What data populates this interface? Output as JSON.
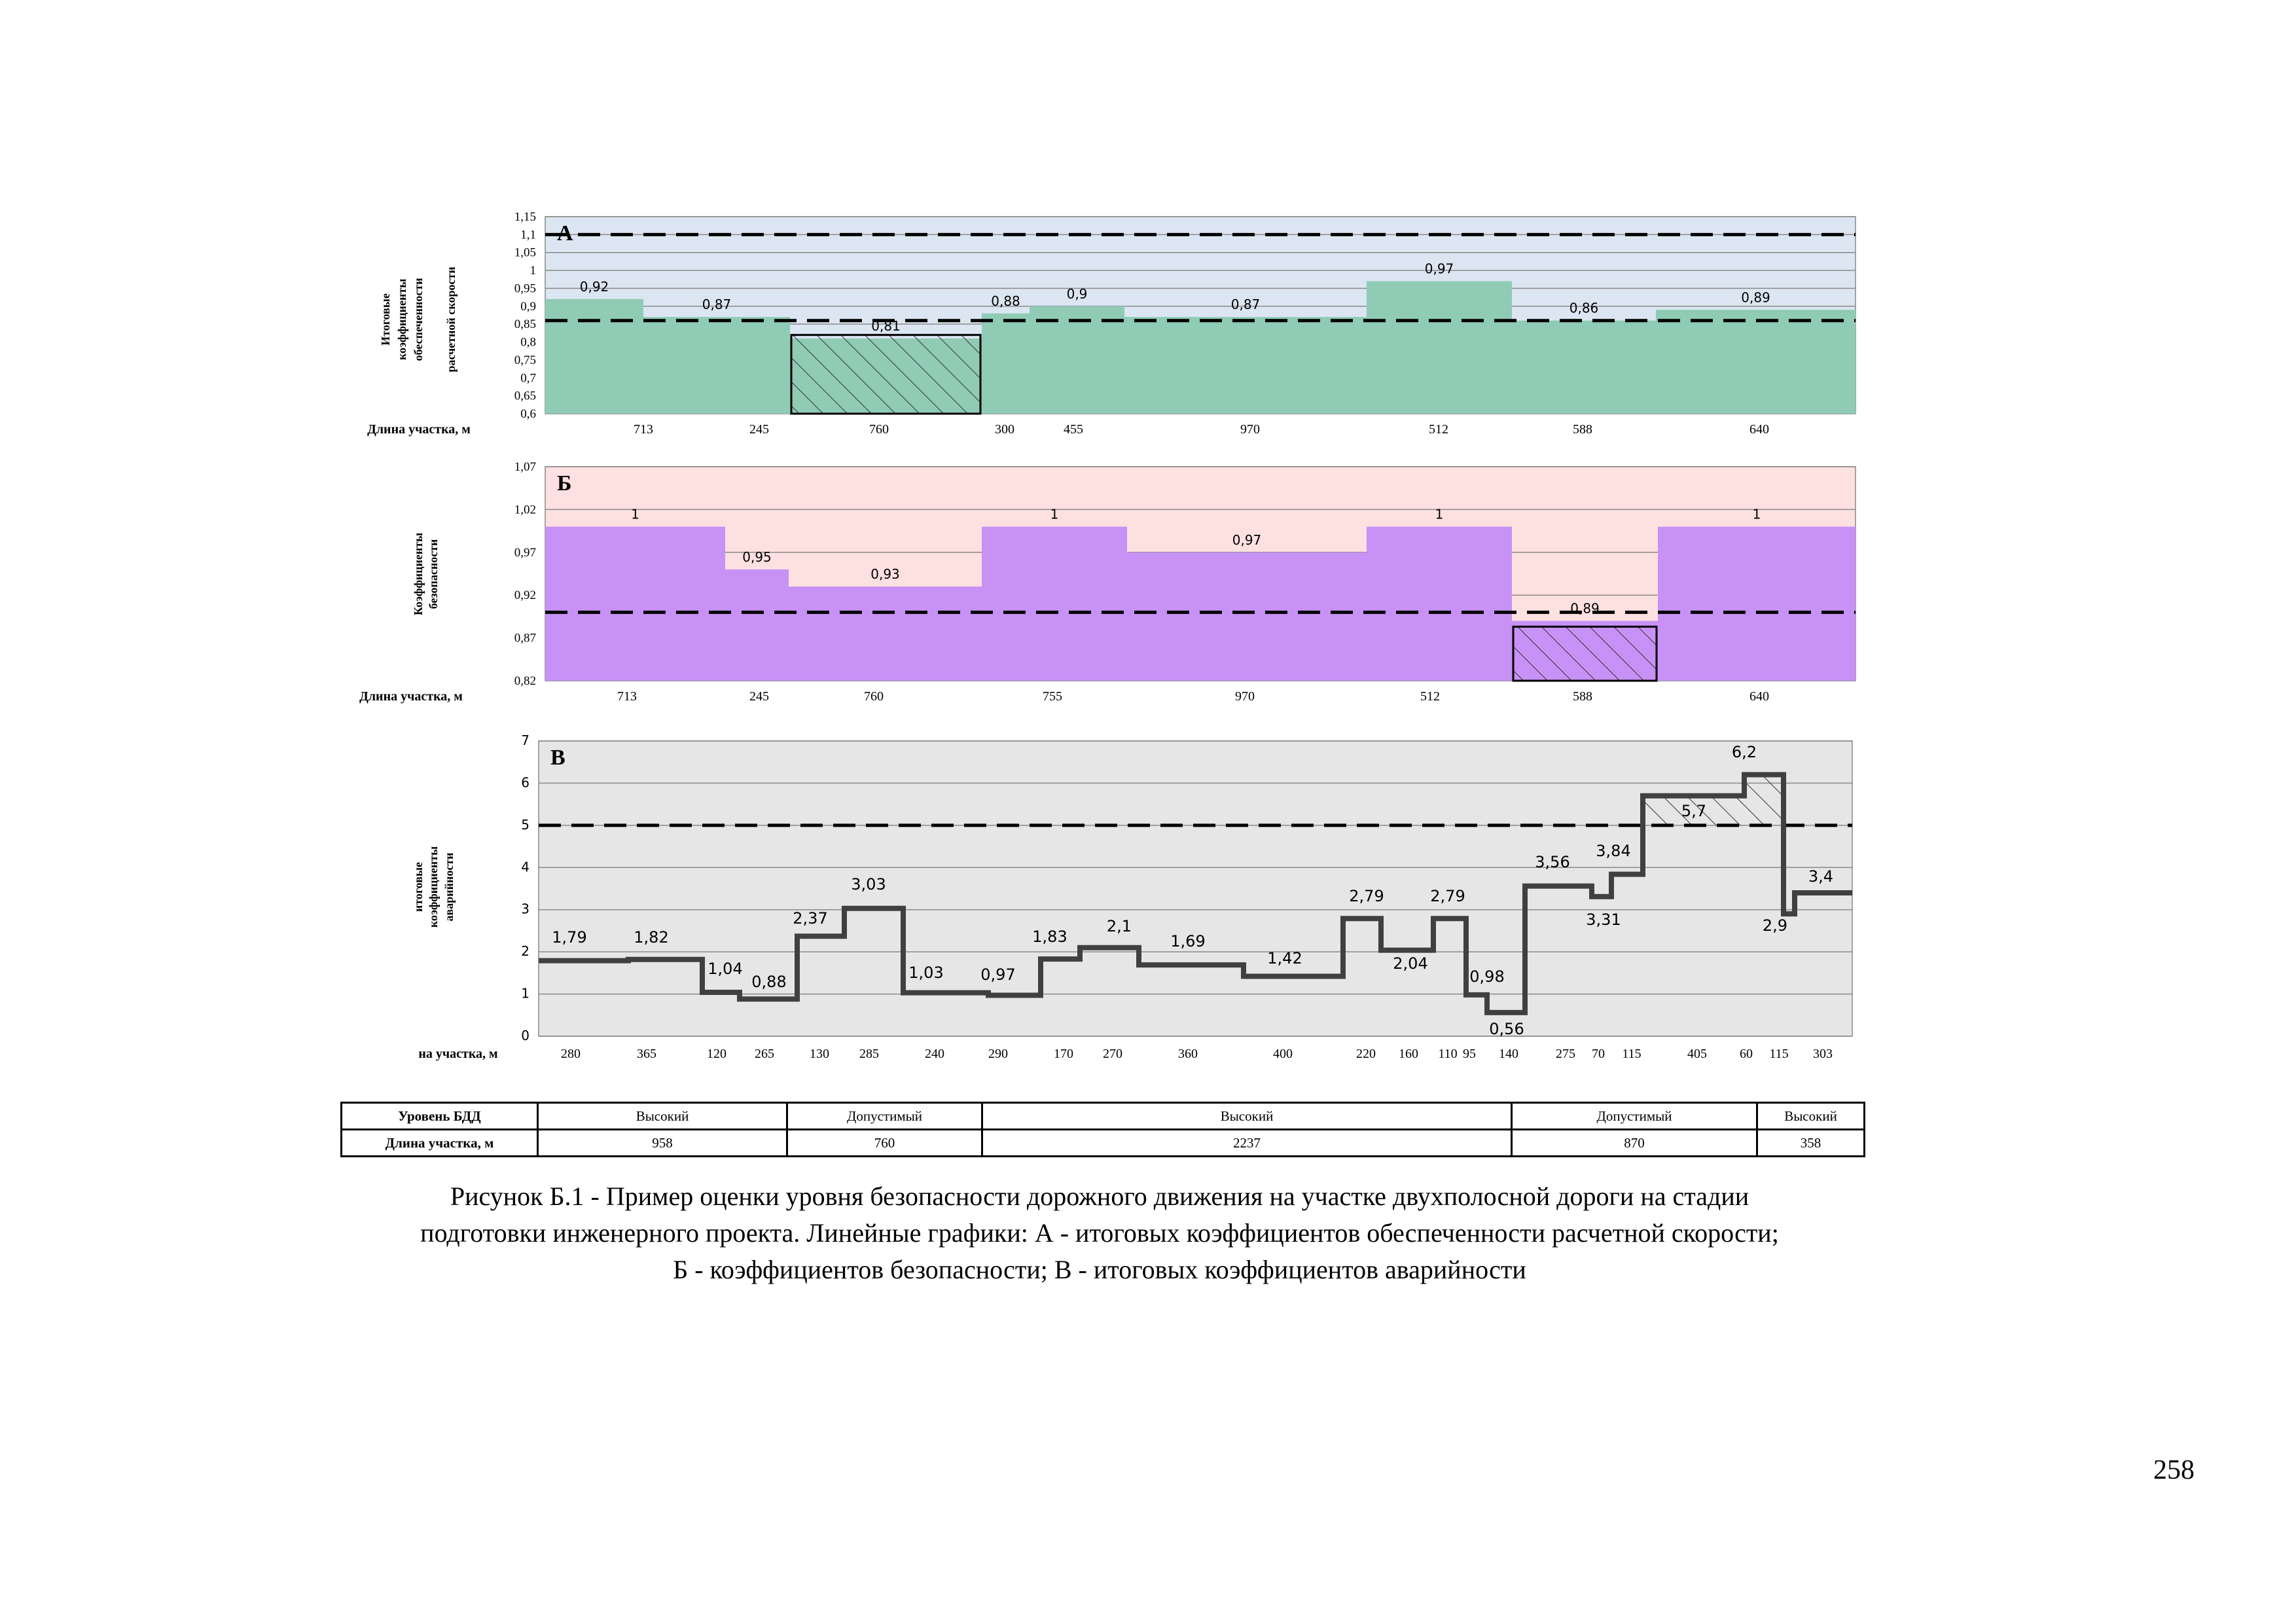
{
  "chart_data": [
    {
      "type": "step",
      "panel_label": "А",
      "ylabel_lines": [
        "Итоговые",
        "коэффициенты",
        "обеспеченности",
        "расчетной скорости"
      ],
      "xlabel": "Длина участка,  м",
      "ylim": [
        0.6,
        1.15
      ],
      "yticks": [
        "0,6",
        "0,65",
        "0,7",
        "0,75",
        "0,8",
        "0,85",
        "0,9",
        "0,95",
        "1",
        "1,05",
        "1,1",
        "1,15"
      ],
      "segments": [
        {
          "length": "713",
          "value": 0.92,
          "label": "0,92"
        },
        {
          "length": "245",
          "value": 0.87,
          "label": "0,87"
        },
        {
          "length": "760",
          "value": 0.81,
          "label": "0,81"
        },
        {
          "length": "300",
          "value": 0.88,
          "label": "0,88"
        },
        {
          "length": "455",
          "value": 0.9,
          "label": "0,9"
        },
        {
          "length": "970",
          "value": 0.87,
          "label": "0,87"
        },
        {
          "length": "512",
          "value": 0.97,
          "label": "0,97"
        },
        {
          "length": "588",
          "value": 0.86,
          "label": "0,86"
        },
        {
          "length": "640",
          "value": 0.89,
          "label": "0,89"
        }
      ],
      "threshold_lines": [
        1.1,
        0.86
      ],
      "hatched_segment": 2,
      "colors": {
        "background": "#dce6f2",
        "fill": "#8fcbb5"
      }
    },
    {
      "type": "step",
      "panel_label": "Б",
      "ylabel_lines": [
        "Коэффициенты",
        "безопасности"
      ],
      "xlabel": "Длина участка,  м",
      "ylim": [
        0.82,
        1.07
      ],
      "yticks": [
        "0,82",
        "0,87",
        "0,92",
        "0,97",
        "1,02",
        "1,07"
      ],
      "segments": [
        {
          "length": "713",
          "value": 1,
          "label": "1"
        },
        {
          "length": "245",
          "value": 0.95,
          "label": "0,95"
        },
        {
          "length": "760",
          "value": 0.93,
          "label": "0,93"
        },
        {
          "length": "755",
          "value": 1,
          "label": "1"
        },
        {
          "length": "970",
          "value": 0.97,
          "label": "0,97"
        },
        {
          "length": "512",
          "value": 1,
          "label": "1"
        },
        {
          "length": "588",
          "value": 0.89,
          "label": "0,89"
        },
        {
          "length": "640",
          "value": 1,
          "label": "1"
        }
      ],
      "threshold_lines": [
        0.9
      ],
      "hatched_segment": 6,
      "colors": {
        "background": "#fde0e0",
        "fill": "#c891f5"
      }
    },
    {
      "type": "step",
      "panel_label": "В",
      "ylabel_lines": [
        "итоговые",
        "коэффициенты",
        "аварийности"
      ],
      "xlabel": "на участка,  м",
      "ylim": [
        0,
        7
      ],
      "yticks": [
        "0",
        "1",
        "2",
        "3",
        "4",
        "5",
        "6",
        "7"
      ],
      "segments": [
        {
          "length": "280",
          "value": 1.79,
          "label": "1,79"
        },
        {
          "length": "365",
          "value": 1.82,
          "label": "1,82"
        },
        {
          "length": "120",
          "value": 1.04,
          "label": "1,04"
        },
        {
          "length": "265",
          "value": 0.88,
          "label": "0,88"
        },
        {
          "length": "130",
          "value": 2.37,
          "label": "2,37"
        },
        {
          "length": "285",
          "value": 3.03,
          "label": "3,03"
        },
        {
          "length": "240",
          "value": 1.03,
          "label": "1,03"
        },
        {
          "length": "290",
          "value": 0.97,
          "label": "0,97"
        },
        {
          "length": "170",
          "value": 1.83,
          "label": "1,83"
        },
        {
          "length": "270",
          "value": 2.1,
          "label": "2,1"
        },
        {
          "length": "360",
          "value": 1.69,
          "label": "1,69"
        },
        {
          "length": "400",
          "value": 1.42,
          "label": "1,42"
        },
        {
          "length": "220",
          "value": 2.79,
          "label": "2,79"
        },
        {
          "length": "160",
          "value": 2.04,
          "label": "2,04"
        },
        {
          "length": "110",
          "value": 2.79,
          "label": "2,79"
        },
        {
          "length": "95",
          "value": 0.98,
          "label": "0,98"
        },
        {
          "length": "140",
          "value": 0.56,
          "label": "0,56"
        },
        {
          "length": "275",
          "value": 3.56,
          "label": "3,56"
        },
        {
          "length": "70",
          "value": 3.31,
          "label": "3,31"
        },
        {
          "length": "115",
          "value": 3.84,
          "label": "3,84"
        },
        {
          "length": "405",
          "value": 5.7,
          "label": "5,7"
        },
        {
          "length": "60",
          "value": 6.2,
          "label": "6,2"
        },
        {
          "length": "115",
          "value": 2.9,
          "label": "2,9"
        },
        {
          "length": "303",
          "value": 3.4,
          "label": "3,4"
        }
      ],
      "threshold_lines": [
        5
      ],
      "hatched_segments": [
        20,
        21
      ],
      "colors": {
        "background": "#e6e6e6",
        "line": "#404040"
      }
    }
  ],
  "summary_table": {
    "row_labels": [
      "Уровень БДД",
      "Длина участка, м"
    ],
    "levels": [
      "Высокий",
      "Допустимый",
      "Высокий",
      "Допустимый",
      "Высокий"
    ],
    "lengths": [
      "958",
      "760",
      "2237",
      "870",
      "358"
    ]
  },
  "caption": {
    "line1": "Рисунок Б.1 - Пример оценки уровня безопасности дорожного движения на участке двухполосной дороги на стадии",
    "line2": "подготовки инженерного проекта. Линейные графики: А - итоговых коэффициентов обеспеченности расчетной скорости;",
    "line3": "Б - коэффициентов безопасности; В - итоговых коэффициентов аварийности"
  },
  "page_number": "258"
}
